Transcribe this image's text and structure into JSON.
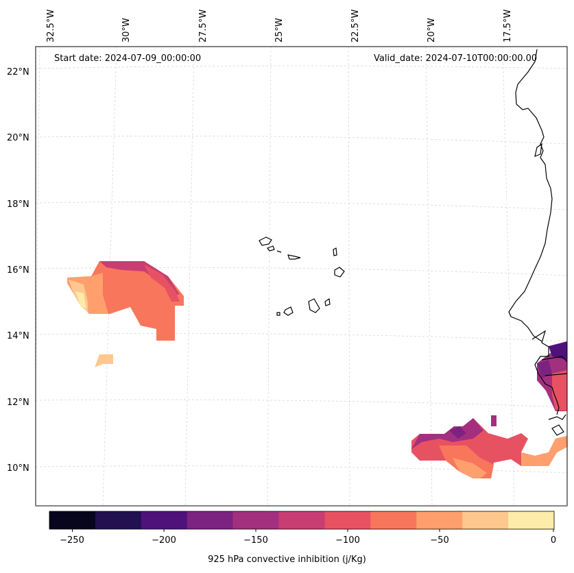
{
  "header": {
    "start_date": "Start date: 2024-07-09_00:00:00",
    "valid_date": "Valid_date: 2024-07-10T00:00:00.00"
  },
  "lon_labels": [
    "32.5°W",
    "30°W",
    "27.5°W",
    "25°W",
    "22.5°W",
    "20°W",
    "17.5°W"
  ],
  "lat_labels": [
    "22°N",
    "20°N",
    "18°N",
    "16°N",
    "14°N",
    "12°N",
    "10°N"
  ],
  "colorbar": {
    "title": "925 hPa convective inhibition (j/Kg)",
    "ticks": [
      "−250",
      "−200",
      "−150",
      "−100",
      "−50",
      "0"
    ],
    "colors": [
      "#07061c",
      "#221150",
      "#4f127b",
      "#7c2382",
      "#a3307e",
      "#c83e73",
      "#e75263",
      "#f8765c",
      "#fe9f6d",
      "#fec78e",
      "#fdeba9"
    ]
  }
}
